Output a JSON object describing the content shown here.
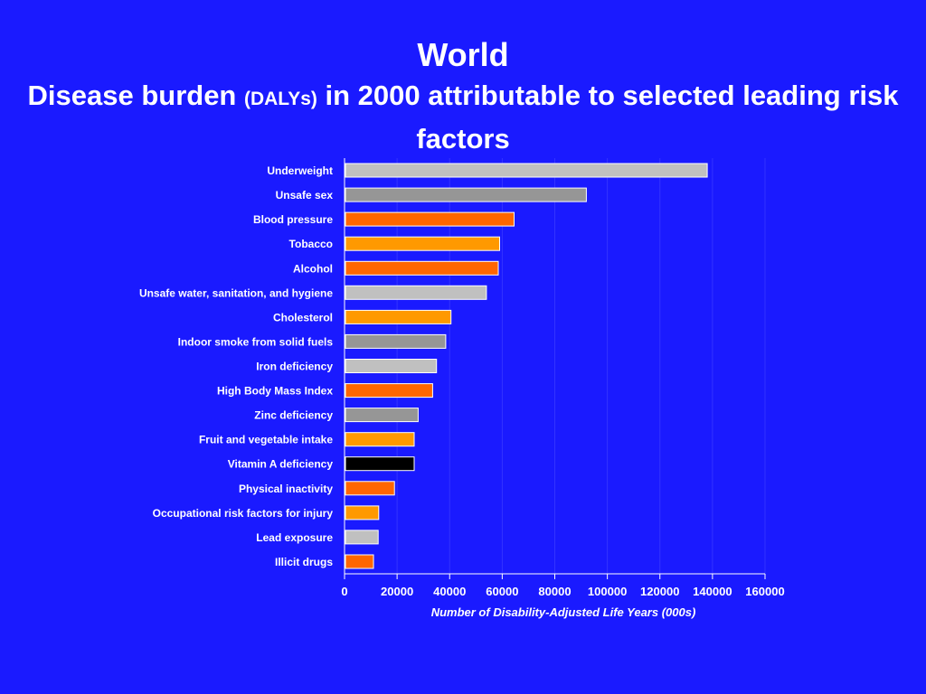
{
  "title": {
    "line1": "World",
    "line2_prefix": "Disease burden ",
    "line2_small": "(DALYs)",
    "line2_suffix": " in 2000 attributable to selected leading risk",
    "line3": "factors"
  },
  "chart_data": {
    "type": "bar",
    "orientation": "horizontal",
    "categories": [
      "Underweight",
      "Unsafe sex",
      "Blood pressure",
      "Tobacco",
      "Alcohol",
      "Unsafe water, sanitation, and hygiene",
      "Cholesterol",
      "Indoor smoke from solid fuels",
      "Iron deficiency",
      "High Body Mass Index",
      "Zinc deficiency",
      "Fruit and vegetable intake",
      "Vitamin A deficiency",
      "Physical inactivity",
      "Occupational risk factors for injury",
      "Lead exposure",
      "Illicit drugs"
    ],
    "values": [
      138000,
      92000,
      64500,
      59000,
      58500,
      54000,
      40500,
      38500,
      35000,
      33500,
      28000,
      26500,
      26500,
      19000,
      13000,
      12800,
      11000
    ],
    "bar_colors": [
      "#c0c0c0",
      "#969696",
      "#ff6600",
      "#ff9900",
      "#ff6600",
      "#c0c0c0",
      "#ff9900",
      "#969696",
      "#c0c0c0",
      "#ff6600",
      "#969696",
      "#ff9900",
      "#000000",
      "#ff6600",
      "#ff9900",
      "#c0c0c0",
      "#ff6600"
    ],
    "xlabel": "Number of Disability-Adjusted Life Years (000s)",
    "ylabel": "",
    "xlim": [
      0,
      160000
    ],
    "xticks": [
      0,
      20000,
      40000,
      60000,
      80000,
      100000,
      120000,
      140000,
      160000
    ],
    "grid": true
  },
  "colors": {
    "background": "#1a1aff",
    "text": "#ffffff",
    "bar_border": "#ffffff",
    "gridline": "#3333ff"
  }
}
